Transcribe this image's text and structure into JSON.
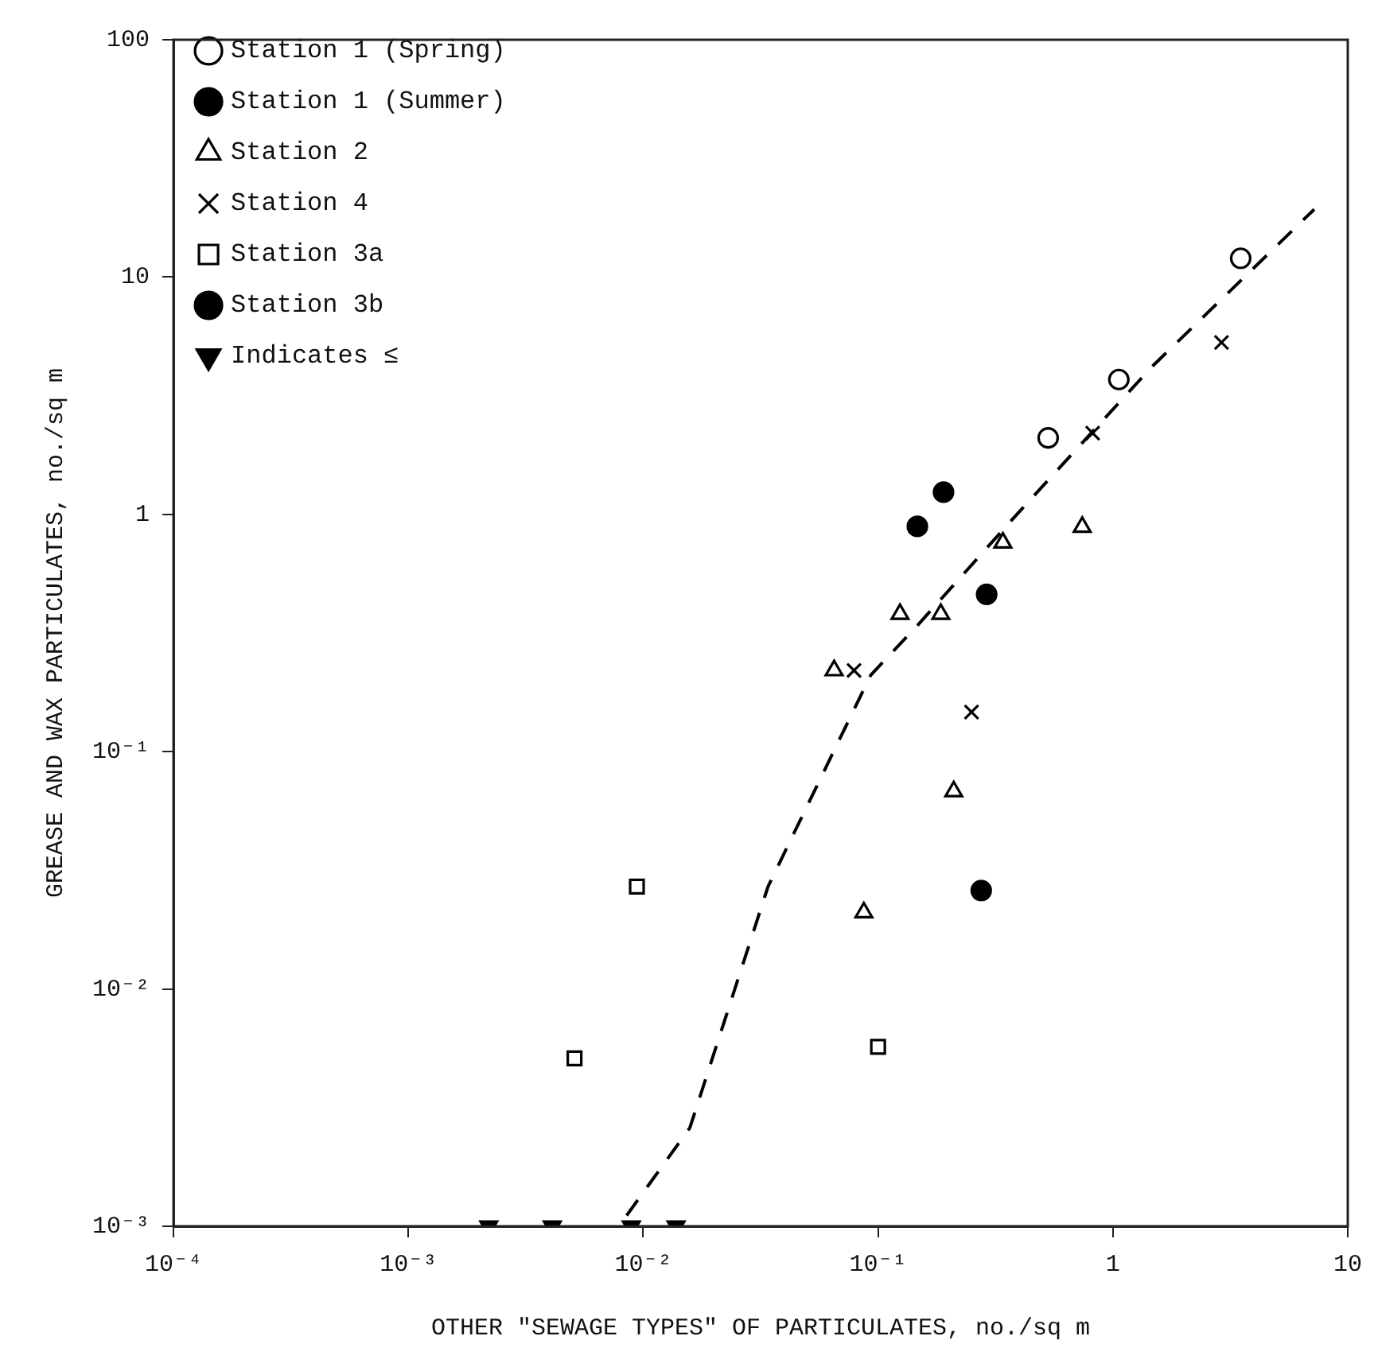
{
  "chart_data": {
    "type": "scatter",
    "xlabel": "OTHER \"SEWAGE TYPES\" OF PARTICULATES, no./sq m",
    "ylabel": "GREASE AND WAX PARTICULATES, no./sq m",
    "log": "xy",
    "grid": false,
    "legend": "top left",
    "xlim": [
      0.0001,
      10
    ],
    "xticks": [
      {
        "value": 0.0001,
        "label": "10⁻⁴"
      },
      {
        "value": 0.001,
        "label": "10⁻³"
      },
      {
        "value": 0.01,
        "label": "10⁻²"
      },
      {
        "value": 0.1,
        "label": "10⁻¹"
      },
      1,
      10
    ],
    "ylim": [
      0.001,
      100
    ],
    "yticks": [
      {
        "value": 0.001,
        "label": "10⁻³"
      },
      {
        "value": 0.01,
        "label": "10⁻²"
      },
      {
        "value": 0.1,
        "label": "10⁻¹"
      },
      1,
      10,
      100
    ],
    "series": [
      {
        "name": "Station 1 (Spring)",
        "color": "#000000",
        "marker": "circle",
        "x": [
          3.5,
          1.06,
          0.53
        ],
        "values": [
          12,
          3.7,
          2.1
        ]
      },
      {
        "name": "Station 1 (Summer)",
        "color": "#000000",
        "marker": "circle",
        "x": [
          0.147
        ],
        "values": [
          0.89
        ]
      },
      {
        "name": "Station 2",
        "color": "#000000",
        "marker": "triangle",
        "x": [
          0.34,
          0.74,
          0.124,
          0.185,
          0.065,
          0.21,
          0.087
        ],
        "values": [
          0.76,
          0.885,
          0.38,
          0.38,
          0.22,
          0.068,
          0.021
        ]
      },
      {
        "name": "Station 4",
        "color": "#000000",
        "marker": "cross",
        "x": [
          2.9,
          0.82,
          0.079,
          0.25
        ],
        "values": [
          5.3,
          2.2,
          0.22,
          0.147
        ]
      },
      {
        "name": "Station 3a",
        "color": "#000000",
        "marker": "square",
        "x": [
          0.0094,
          0.0051,
          0.1
        ],
        "values": [
          0.027,
          0.0051,
          0.0057
        ]
      },
      {
        "name": "Station 3b",
        "color": "#000000",
        "marker": "circle",
        "x": [
          0.19,
          0.29,
          0.275
        ],
        "values": [
          1.24,
          0.46,
          0.026
        ]
      },
      {
        "name": "Indicates ≤",
        "color": "#000000",
        "marker": "triangle",
        "x": [
          0.0022,
          0.0041,
          0.0089,
          0.0138
        ],
        "values": [
          0.001,
          0.001,
          0.001,
          0.001
        ]
      },
      {
        "type": "line",
        "color": "#000000",
        "marker": "none",
        "line_style": "dashed",
        "x": [
          0.0085,
          0.0158,
          0.034,
          0.093,
          0.147,
          0.39,
          1.47,
          7.2
        ],
        "values": [
          0.00111,
          0.0026,
          0.027,
          0.21,
          0.34,
          1.0,
          4.2,
          19.3
        ]
      }
    ]
  }
}
